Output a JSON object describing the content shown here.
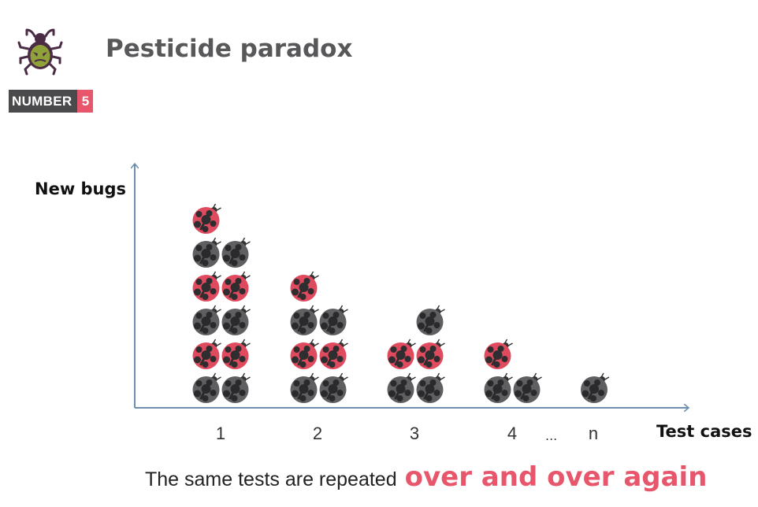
{
  "header": {
    "title": "Pesticide paradox",
    "badge_label": "NUMBER",
    "badge_number": "5",
    "logo_icon": "bug-icon"
  },
  "colors": {
    "accent": "#e8566c",
    "bug_red": "#e04a5e",
    "bug_gray": "#5f5f62",
    "axis": "#6f8fb0"
  },
  "chart_data": {
    "type": "pictograph",
    "ylabel": "New bugs",
    "xlabel": "Test cases",
    "categories": [
      "1",
      "2",
      "3",
      "4",
      "n"
    ],
    "ellipsis": "...",
    "stacks": [
      {
        "category": "1",
        "columns": [
          [
            "gray",
            "red",
            "gray",
            "red",
            "gray",
            "red"
          ],
          [
            "gray",
            "red",
            "gray",
            "red",
            "gray"
          ]
        ]
      },
      {
        "category": "2",
        "columns": [
          [
            "gray",
            "red",
            "gray",
            "red"
          ],
          [
            "gray",
            "red",
            "gray"
          ]
        ]
      },
      {
        "category": "3",
        "columns": [
          [
            "gray",
            "red"
          ],
          [
            "gray",
            "red",
            "gray"
          ]
        ]
      },
      {
        "category": "4",
        "columns": [
          [
            "gray",
            "red"
          ],
          [
            "gray"
          ]
        ]
      },
      {
        "category": "n",
        "columns": [
          [
            "gray"
          ]
        ]
      }
    ],
    "bug_counts": [
      11,
      7,
      5,
      3,
      1
    ]
  },
  "caption": {
    "text": "The same tests are repeated",
    "highlight": "over and over again"
  }
}
